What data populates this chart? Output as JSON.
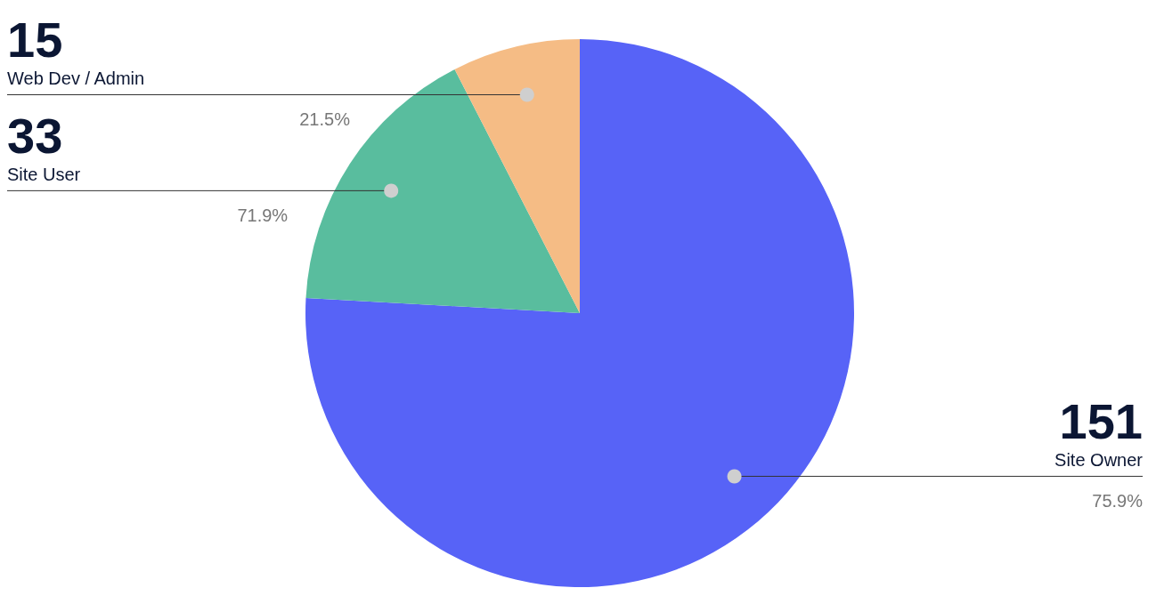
{
  "chart_data": {
    "type": "pie",
    "categories": [
      "Site Owner",
      "Site User",
      "Web Dev / Admin"
    ],
    "values": [
      151,
      33,
      15
    ],
    "colors": [
      "#5763f7",
      "#59bd9e",
      "#f5bc85"
    ],
    "data_labels": true,
    "annotations": [
      "75.9%",
      "71.9%",
      "21.5%"
    ]
  }
}
